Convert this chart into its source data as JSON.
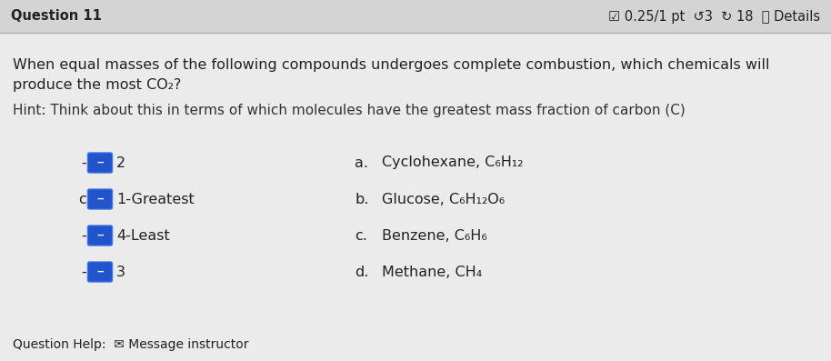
{
  "bg_color": "#c8c8c8",
  "header_bg": "#d4d4d4",
  "body_bg": "#ebebeb",
  "title_left": "Question 11",
  "title_right": "☑ 0.25/1 pt  ↺3  ↻ 18  ⓘ Details",
  "question_text_line1": "When equal masses of the following compounds undergoes complete combustion, which chemicals will",
  "question_text_line2": "produce the most CO₂?",
  "hint_text": "Hint: Think about this in terms of which molecules have the greatest mass fraction of carbon (C)",
  "answers": [
    {
      "left_label": "-",
      "rank": "2",
      "letter": "a.",
      "compound": "Cyclohexane, C₆H₁₂"
    },
    {
      "left_label": "c",
      "rank": "1-Greatest",
      "letter": "b.",
      "compound": "Glucose, C₆H₁₂O₆"
    },
    {
      "left_label": "-",
      "rank": "4-Least",
      "letter": "c.",
      "compound": "Benzene, C₆H₆"
    },
    {
      "left_label": "-",
      "rank": "3",
      "letter": "d.",
      "compound": "Methane, CH₄"
    }
  ],
  "footer_icon": "✉",
  "footer_text": "Question Help:  Message instructor",
  "icon_color": "#2255cc",
  "icon_border_color": "#4477ee",
  "text_color": "#222222",
  "hint_color": "#333333",
  "header_line_color": "#aaaaaa",
  "font_size_header": 10.5,
  "font_size_body": 11.5,
  "font_size_hint": 11,
  "font_size_answer": 11.5,
  "font_size_footer": 10
}
